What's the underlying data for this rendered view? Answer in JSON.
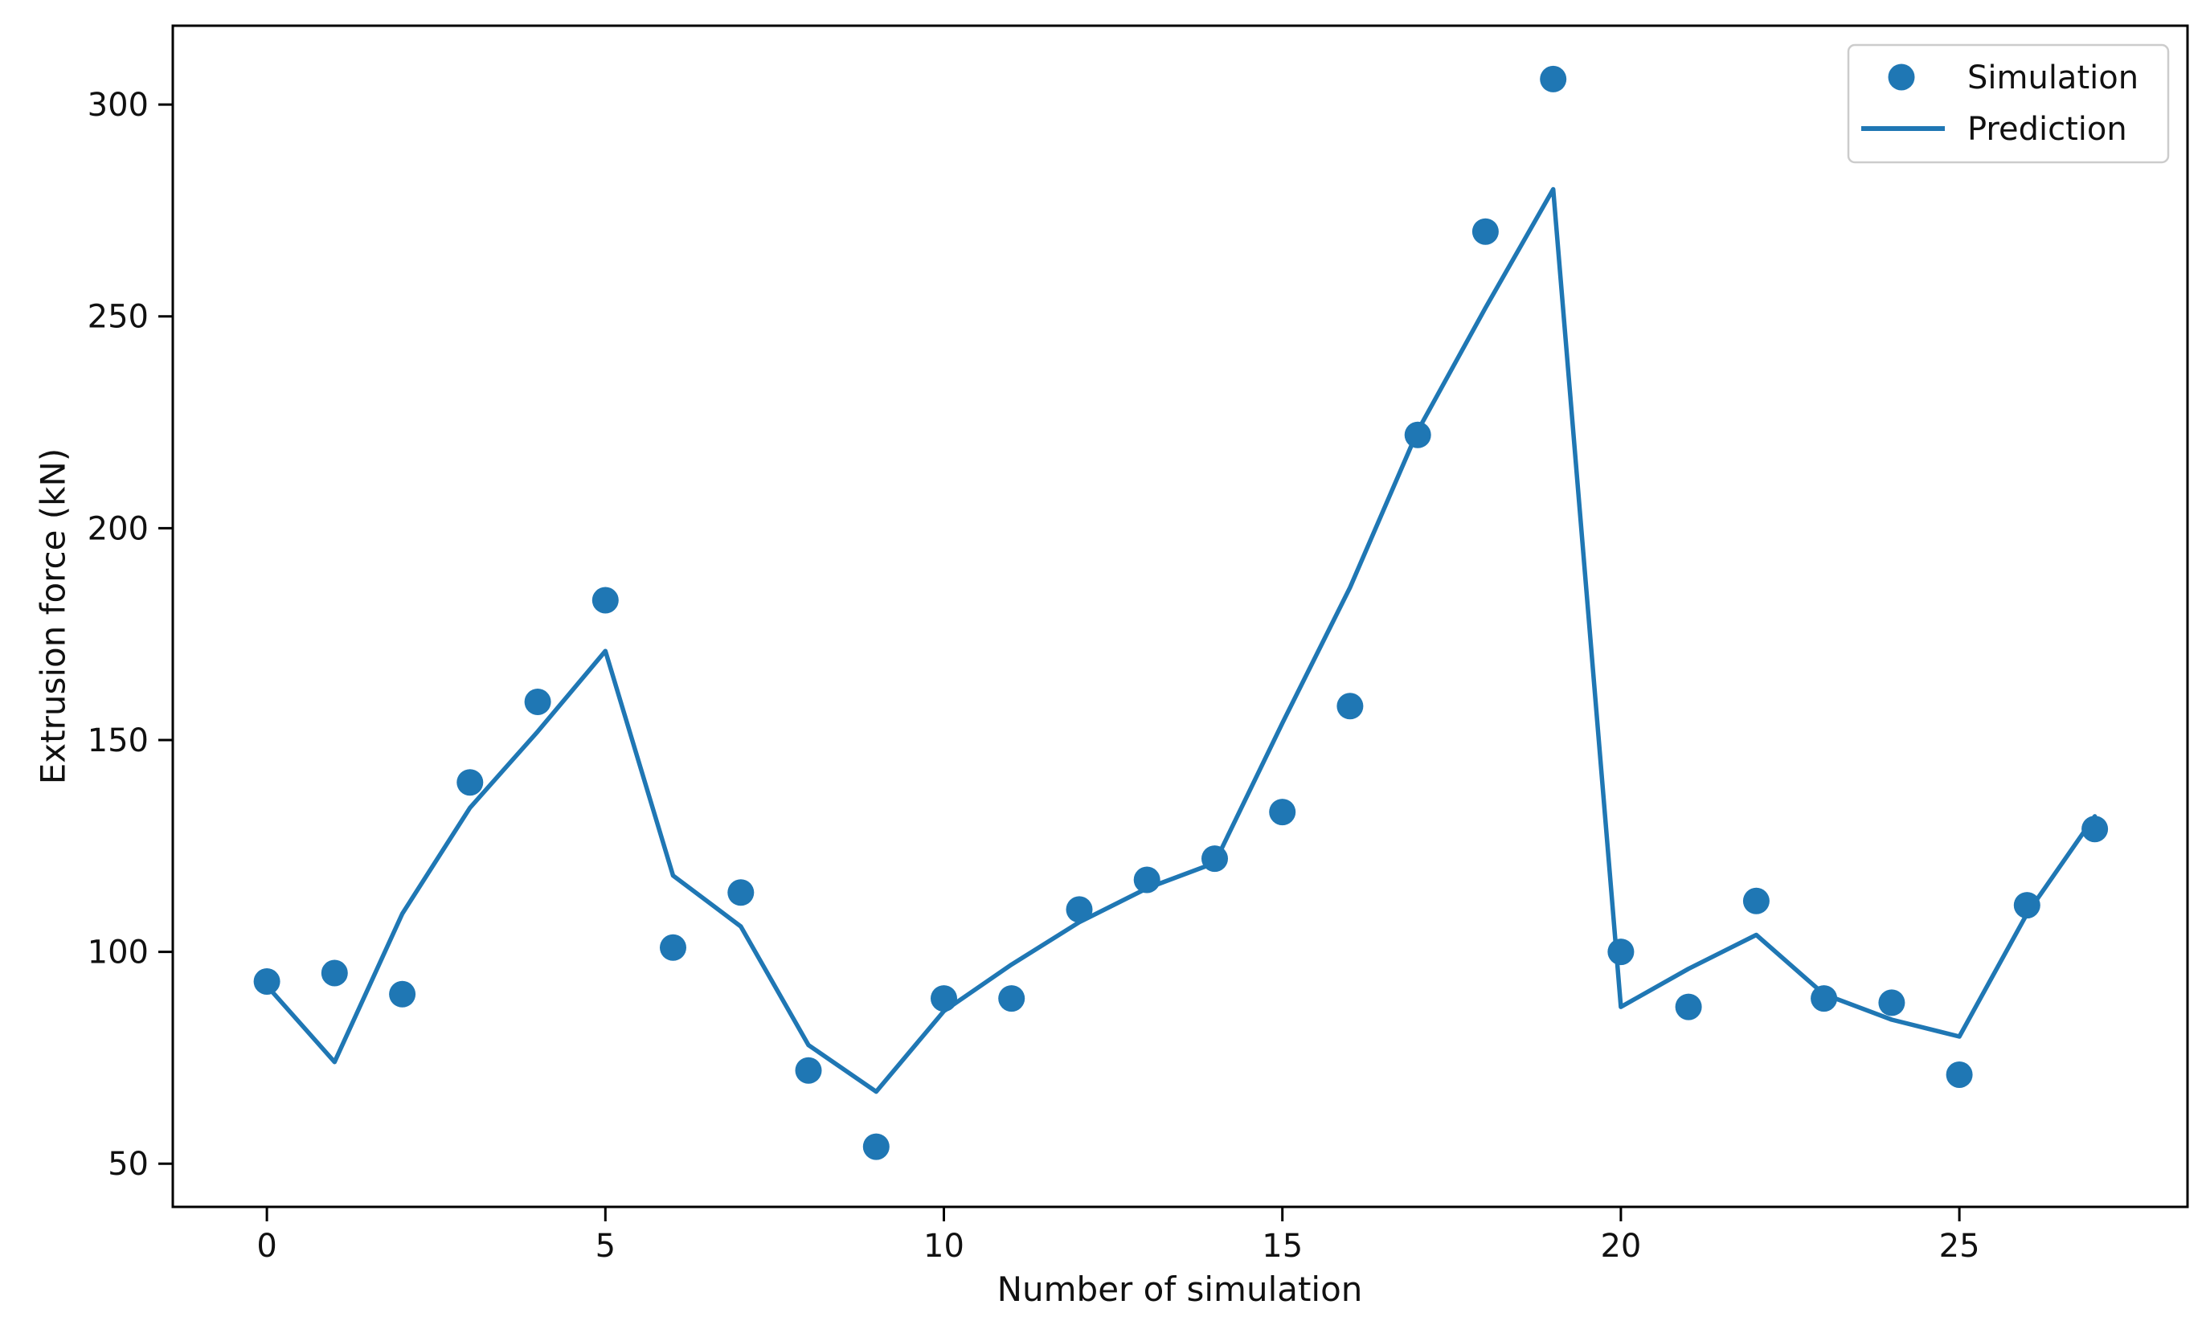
{
  "chart_data": {
    "type": "scatter+line",
    "title": "",
    "xlabel": "Number of simulation",
    "ylabel": "Extrusion force (kN)",
    "x": [
      0,
      1,
      2,
      3,
      4,
      5,
      6,
      7,
      8,
      9,
      10,
      11,
      12,
      13,
      14,
      15,
      16,
      17,
      18,
      19,
      20,
      21,
      22,
      23,
      24,
      25,
      26,
      27
    ],
    "series": [
      {
        "name": "Simulation",
        "type": "scatter",
        "color": "#1f77b4",
        "values": [
          93,
          95,
          90,
          140,
          159,
          183,
          101,
          114,
          72,
          54,
          89,
          89,
          110,
          117,
          122,
          133,
          158,
          222,
          270,
          306,
          100,
          87,
          112,
          89,
          88,
          71,
          111,
          129
        ]
      },
      {
        "name": "Prediction",
        "type": "line",
        "color": "#1f77b4",
        "values": [
          92,
          74,
          109,
          134,
          152,
          171,
          118,
          106,
          78,
          67,
          86,
          97,
          107,
          115,
          121,
          154,
          186,
          223,
          252,
          280,
          87,
          96,
          104,
          90,
          84,
          80,
          109,
          132
        ]
      }
    ],
    "x_ticks": [
      0,
      5,
      10,
      15,
      20,
      25
    ],
    "y_ticks": [
      50,
      100,
      150,
      200,
      250,
      300
    ],
    "xlim": [
      -1.39,
      28.37
    ],
    "ylim": [
      39.8,
      318.6
    ],
    "grid": false,
    "legend_position": "upper right"
  },
  "legend": {
    "entries": [
      {
        "label": "Simulation",
        "marker": "dot"
      },
      {
        "label": "Prediction",
        "marker": "line"
      }
    ]
  },
  "colors": {
    "accent": "#1f77b4",
    "spine": "#000000",
    "text": "#111111",
    "tick_text": "#111111",
    "legend_border": "#cccccc",
    "background": "#ffffff"
  }
}
